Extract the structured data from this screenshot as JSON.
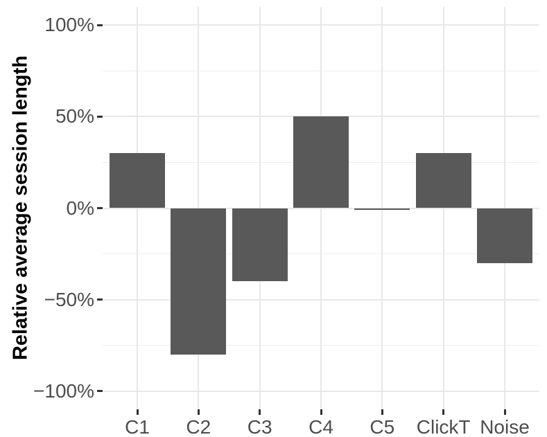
{
  "chart_data": {
    "type": "bar",
    "title": "",
    "xlabel": "",
    "ylabel": "Relative average session length",
    "categories": [
      "C1",
      "C2",
      "C3",
      "C4",
      "C5",
      "ClickT",
      "Noise"
    ],
    "values": [
      30,
      -80,
      -40,
      50,
      0,
      30,
      -30
    ],
    "value_unit": "percent",
    "ylim": [
      -110,
      110
    ],
    "y_major_ticks": [
      100,
      50,
      0,
      -50,
      -100
    ],
    "y_major_tick_labels": [
      "100%",
      "50%",
      "0%",
      "−50%",
      "−100%"
    ],
    "y_minor_ticks": [
      75,
      25,
      -25,
      -75
    ],
    "grid": "on",
    "legend": "none",
    "colors": {
      "bar_fill": "#595959",
      "axis_text": "#4d4d4d",
      "axis_title": "#000000",
      "grid_major": "#e8e8e8",
      "grid_minor": "#ededed",
      "tick_mark": "#333333",
      "background": "#ffffff"
    }
  }
}
